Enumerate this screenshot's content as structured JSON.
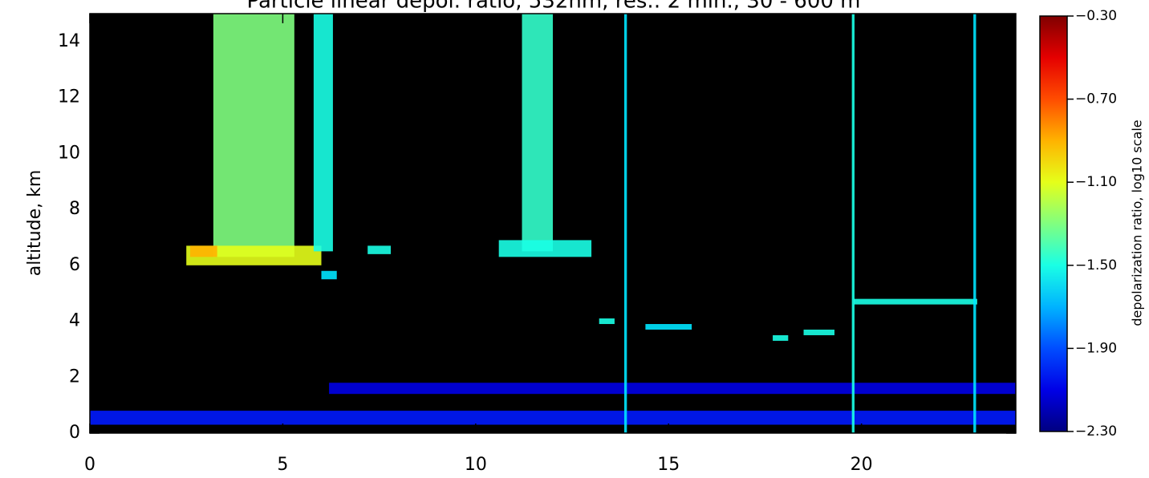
{
  "chart_data": {
    "type": "heatmap",
    "title": "Particle linear depol. ratio, 532nm, res.: 2 min., 30 - 600 m",
    "ylabel": "altitude, km",
    "colorbar_label": "depolarization ratio, log10 scale",
    "xlim": [
      0,
      24
    ],
    "xticks": [
      0,
      5,
      10,
      15,
      20
    ],
    "ylim": [
      0,
      15
    ],
    "yticks": [
      0,
      2,
      4,
      6,
      8,
      10,
      12,
      14
    ],
    "clim": [
      -2.3,
      -0.3
    ],
    "cticks": [
      {
        "value": -0.3,
        "label": "−0.30"
      },
      {
        "value": -0.7,
        "label": "−0.70"
      },
      {
        "value": -1.1,
        "label": "−1.10"
      },
      {
        "value": -1.5,
        "label": "−1.50"
      },
      {
        "value": -1.9,
        "label": "−1.90"
      },
      {
        "value": -2.3,
        "label": "−2.30"
      }
    ],
    "colormap": "jet",
    "background": "#000000",
    "regions": [
      {
        "x": [
          0,
          24
        ],
        "y": [
          0.3,
          0.8
        ],
        "value": -2.0
      },
      {
        "x": [
          6.2,
          24
        ],
        "y": [
          1.4,
          1.8
        ],
        "value": -2.1
      },
      {
        "x": [
          3.2,
          5.3
        ],
        "y": [
          6.3,
          15
        ],
        "value": -1.3
      },
      {
        "x": [
          2.5,
          6
        ],
        "y": [
          6.0,
          6.7
        ],
        "value": -1.1
      },
      {
        "x": [
          2.6,
          3.3
        ],
        "y": [
          6.3,
          6.7
        ],
        "value": -0.9
      },
      {
        "x": [
          11.2,
          12.0
        ],
        "y": [
          6.5,
          15
        ],
        "value": -1.45
      },
      {
        "x": [
          10.6,
          13
        ],
        "y": [
          6.3,
          6.9
        ],
        "value": -1.5
      },
      {
        "x": [
          5.8,
          6.3
        ],
        "y": [
          6.5,
          15
        ],
        "value": -1.5
      },
      {
        "x": [
          6.0,
          6.4
        ],
        "y": [
          5.5,
          5.8
        ],
        "value": -1.6
      },
      {
        "x": [
          7.2,
          7.8
        ],
        "y": [
          6.4,
          6.7
        ],
        "value": -1.5
      },
      {
        "x": [
          13.2,
          13.6
        ],
        "y": [
          3.9,
          4.1
        ],
        "value": -1.5
      },
      {
        "x": [
          14.4,
          15.6
        ],
        "y": [
          3.7,
          3.9
        ],
        "value": -1.6
      },
      {
        "x": [
          17.7,
          18.1
        ],
        "y": [
          3.3,
          3.5
        ],
        "value": -1.5
      },
      {
        "x": [
          18.5,
          19.3
        ],
        "y": [
          3.5,
          3.7
        ],
        "value": -1.5
      },
      {
        "x": [
          19.8,
          23
        ],
        "y": [
          4.6,
          4.8
        ],
        "value": -1.5
      },
      {
        "x": [
          13.85,
          13.92
        ],
        "y": [
          0,
          15
        ],
        "value": -1.6
      },
      {
        "x": [
          19.75,
          19.82
        ],
        "y": [
          0,
          15
        ],
        "value": -1.5
      },
      {
        "x": [
          22.9,
          22.97
        ],
        "y": [
          0,
          15
        ],
        "value": -1.6
      }
    ]
  }
}
